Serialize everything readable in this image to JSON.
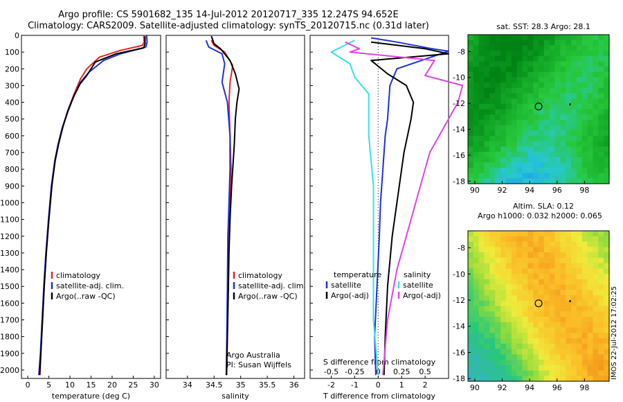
{
  "header": {
    "line1": "Argo profile: CS 5901682_135 14-Jul-2012 20120717_335 12.247S 94.652E",
    "line2": "Climatology: CARS2009. Satellite-adjusted climatology: synTS_20120715.nc (0.31d later)"
  },
  "colors": {
    "climatology": "#e8231e",
    "satellite_adj": "#1c2fe0",
    "argo": "#000000",
    "sat_salinity": "#34e0ee",
    "argo_adj_salinity": "#e040e8"
  },
  "chart_data": [
    {
      "type": "line",
      "xlabel": "temperature (deg C)",
      "xticks": [
        0,
        5,
        10,
        15,
        20,
        25,
        30
      ],
      "xlim": [
        -1.5,
        31.5
      ],
      "ylim": [
        2050,
        0
      ],
      "yticks": [
        0,
        100,
        200,
        300,
        400,
        500,
        600,
        700,
        800,
        900,
        1000,
        1100,
        1200,
        1300,
        1400,
        1500,
        1600,
        1700,
        1800,
        1900,
        2000
      ],
      "legend": [
        "climatology",
        "satellite-adj. clim.",
        "Argo(..raw -QC)"
      ],
      "series": [
        {
          "name": "climatology",
          "points": [
            [
              27.5,
              0
            ],
            [
              27.6,
              40
            ],
            [
              27.2,
              60
            ],
            [
              22,
              90
            ],
            [
              17,
              130
            ],
            [
              14,
              200
            ],
            [
              12.5,
              260
            ],
            [
              11,
              350
            ],
            [
              9.5,
              450
            ],
            [
              8.2,
              550
            ],
            [
              7.2,
              650
            ],
            [
              6.4,
              750
            ],
            [
              5.7,
              900
            ],
            [
              5,
              1100
            ],
            [
              4.4,
              1300
            ],
            [
              3.9,
              1500
            ],
            [
              3.5,
              1700
            ],
            [
              3.1,
              1900
            ],
            [
              2.9,
              2030
            ]
          ]
        },
        {
          "name": "satellite-adj. clim.",
          "points": [
            [
              28.2,
              0
            ],
            [
              28.3,
              40
            ],
            [
              28,
              70
            ],
            [
              22,
              110
            ],
            [
              18,
              150
            ],
            [
              14.5,
              220
            ],
            [
              12.5,
              280
            ],
            [
              11,
              360
            ],
            [
              9.6,
              450
            ],
            [
              8.2,
              550
            ],
            [
              7.2,
              650
            ],
            [
              6.4,
              750
            ],
            [
              5.6,
              900
            ],
            [
              4.9,
              1100
            ],
            [
              4.3,
              1300
            ],
            [
              3.8,
              1500
            ],
            [
              3.4,
              1700
            ],
            [
              3.0,
              1900
            ],
            [
              2.6,
              2030
            ]
          ]
        },
        {
          "name": "Argo(..raw -QC)",
          "points": [
            [
              27.8,
              5
            ],
            [
              27.8,
              50
            ],
            [
              27.5,
              75
            ],
            [
              21,
              110
            ],
            [
              16,
              160
            ],
            [
              14,
              240
            ],
            [
              12.4,
              290
            ],
            [
              10.8,
              370
            ],
            [
              9.5,
              450
            ],
            [
              8.3,
              550
            ],
            [
              7.3,
              650
            ],
            [
              6.5,
              750
            ],
            [
              5.7,
              900
            ],
            [
              5,
              1100
            ],
            [
              4.4,
              1300
            ],
            [
              3.9,
              1500
            ],
            [
              3.5,
              1700
            ],
            [
              3.1,
              1900
            ],
            [
              2.8,
              2030
            ]
          ]
        }
      ]
    },
    {
      "type": "line",
      "xlabel": "salinity",
      "xticks": [
        34,
        34.5,
        35,
        35.5,
        36
      ],
      "xlim": [
        33.6,
        36.2
      ],
      "ylim": [
        2050,
        0
      ],
      "legend": [
        "climatology",
        "satellite-adj. clim.",
        "Argo(..raw -QC)"
      ],
      "annotation": [
        "Argo Australia",
        "PI: Susan Wijffels"
      ],
      "series": [
        {
          "name": "climatology",
          "points": [
            [
              34.45,
              30
            ],
            [
              34.5,
              60
            ],
            [
              34.7,
              100
            ],
            [
              34.85,
              180
            ],
            [
              34.8,
              280
            ],
            [
              34.78,
              400
            ],
            [
              34.8,
              600
            ],
            [
              34.82,
              800
            ],
            [
              34.8,
              1000
            ],
            [
              34.78,
              1200
            ],
            [
              34.76,
              1500
            ],
            [
              34.75,
              1800
            ],
            [
              34.74,
              2030
            ]
          ]
        },
        {
          "name": "satellite-adj. clim.",
          "points": [
            [
              34.35,
              30
            ],
            [
              34.4,
              70
            ],
            [
              34.65,
              110
            ],
            [
              34.7,
              170
            ],
            [
              34.65,
              280
            ],
            [
              34.75,
              400
            ],
            [
              34.8,
              600
            ],
            [
              34.8,
              800
            ],
            [
              34.78,
              1000
            ],
            [
              34.76,
              1200
            ],
            [
              34.75,
              1500
            ],
            [
              34.74,
              1800
            ],
            [
              34.73,
              2030
            ]
          ]
        },
        {
          "name": "Argo(..raw -QC)",
          "points": [
            [
              34.45,
              5
            ],
            [
              34.5,
              50
            ],
            [
              34.62,
              80
            ],
            [
              34.8,
              150
            ],
            [
              34.9,
              230
            ],
            [
              34.97,
              320
            ],
            [
              34.93,
              400
            ],
            [
              34.9,
              500
            ],
            [
              34.88,
              650
            ],
            [
              34.85,
              800
            ],
            [
              34.83,
              900
            ],
            [
              34.8,
              1100
            ],
            [
              34.78,
              1300
            ],
            [
              34.77,
              1500
            ],
            [
              34.75,
              1800
            ],
            [
              34.73,
              2030
            ]
          ]
        }
      ]
    },
    {
      "type": "line",
      "xlabel": "T difference from climatology",
      "xticks": [
        -2,
        -1,
        0,
        1,
        2
      ],
      "secondary_xlabel": "S difference from climatology",
      "secondary_xticks": [
        -0.5,
        -0.25,
        0,
        0.25,
        0.5
      ],
      "xlim": [
        -2.9,
        3.0
      ],
      "ylim": [
        2050,
        0
      ],
      "legend_title_left": "temperature",
      "legend_title_right": "salinity",
      "legend": [
        "satellite",
        "Argo(-adj)",
        "satellite",
        "Argo(-adj)"
      ],
      "series": [
        {
          "name": "satellite",
          "points": [
            [
              -0.3,
              15
            ],
            [
              0.8,
              40
            ],
            [
              2.3,
              80
            ],
            [
              3.0,
              95
            ],
            [
              0.8,
              200
            ],
            [
              0.5,
              300
            ],
            [
              0.45,
              400
            ],
            [
              0.4,
              500
            ],
            [
              0.3,
              600
            ],
            [
              0.25,
              700
            ],
            [
              0.2,
              800
            ],
            [
              0.1,
              1000
            ],
            [
              0.05,
              1200
            ],
            [
              -0.05,
              1500
            ],
            [
              -0.15,
              1800
            ],
            [
              -0.1,
              2030
            ]
          ]
        },
        {
          "name": "Argo(-adj)",
          "points": [
            [
              -0.3,
              40
            ],
            [
              2.0,
              80
            ],
            [
              3.0,
              110
            ],
            [
              -0.3,
              150
            ],
            [
              0.4,
              230
            ],
            [
              1.2,
              300
            ],
            [
              1.5,
              400
            ],
            [
              1.4,
              500
            ],
            [
              1.25,
              600
            ],
            [
              1.1,
              700
            ],
            [
              1.0,
              800
            ],
            [
              0.8,
              1000
            ],
            [
              0.6,
              1200
            ],
            [
              0.4,
              1500
            ],
            [
              0.3,
              1800
            ],
            [
              0.25,
              2030
            ]
          ]
        },
        {
          "name": "satellite",
          "points": [
            [
              -0.25,
              30
            ],
            [
              -0.5,
              100
            ],
            [
              -0.3,
              170
            ],
            [
              -0.25,
              250
            ],
            [
              -0.1,
              350
            ],
            [
              -0.1,
              600
            ],
            [
              -0.05,
              900
            ],
            [
              -0.05,
              1300
            ],
            [
              -0.05,
              1700
            ],
            [
              0,
              2030
            ]
          ]
        },
        {
          "name": "Argo(-adj)",
          "points": [
            [
              -0.35,
              40
            ],
            [
              -0.2,
              80
            ],
            [
              -0.3,
              100
            ],
            [
              0.6,
              150
            ],
            [
              0.5,
              240
            ],
            [
              0.9,
              300
            ],
            [
              0.85,
              400
            ],
            [
              0.7,
              550
            ],
            [
              0.55,
              700
            ],
            [
              0.45,
              900
            ],
            [
              0.35,
              1100
            ],
            [
              0.2,
              1400
            ],
            [
              0.1,
              1700
            ],
            [
              0.05,
              2030
            ]
          ]
        }
      ]
    },
    {
      "type": "heatmap",
      "title": "sat. SST: 28.3  Argo: 28.1",
      "xticks": [
        90,
        92,
        94,
        96,
        98
      ],
      "yticks": [
        -8,
        -10,
        -12,
        -14,
        -16,
        -18
      ],
      "xlim": [
        89.5,
        99.8
      ],
      "ylim": [
        -18.2,
        -6.7
      ],
      "marker": {
        "lon": 94.652,
        "lat": -12.247
      }
    },
    {
      "type": "heatmap",
      "title": "Altim. SLA: 0.12",
      "subtitle": "Argo h1000: 0.032  h2000: 0.065",
      "xticks": [
        90,
        92,
        94,
        96,
        98
      ],
      "yticks": [
        -8,
        -10,
        -12,
        -14,
        -16,
        -18
      ],
      "xlim": [
        89.5,
        99.8
      ],
      "ylim": [
        -18.2,
        -6.7
      ],
      "marker": {
        "lon": 94.652,
        "lat": -12.247
      }
    }
  ],
  "stamp": "IMOS 22-Jul-2012 17:02:25"
}
